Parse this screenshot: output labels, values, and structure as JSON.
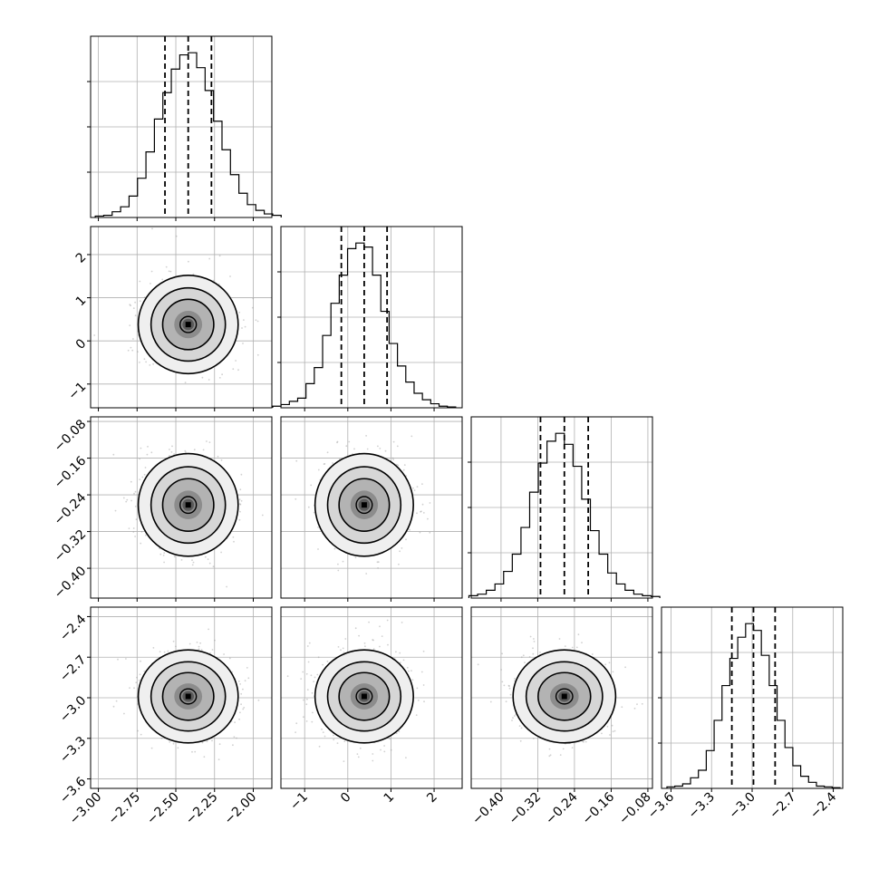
{
  "chart_data": {
    "type": "corner",
    "grid": true,
    "colors": {
      "line": "#000000",
      "grid": "#b0b0b0",
      "points": "#999999"
    },
    "parameters": [
      {
        "range": [
          -3.05,
          -1.88
        ],
        "ticks": [
          "-3.00",
          "-2.75",
          "-2.50",
          "-2.25",
          "-2.00"
        ],
        "tick_values": [
          -3.0,
          -2.75,
          -2.5,
          -2.25,
          -2.0
        ],
        "mean": -2.42,
        "sd": 0.15,
        "quantiles": [
          -2.57,
          -2.42,
          -2.27
        ]
      },
      {
        "range": [
          -1.55,
          2.65
        ],
        "ticks": [
          "-1",
          "0",
          "1",
          "2"
        ],
        "tick_values": [
          -1,
          0,
          1,
          2
        ],
        "mean": 0.38,
        "sd": 0.53,
        "quantiles": [
          -0.15,
          0.38,
          0.91
        ]
      },
      {
        "range": [
          -0.465,
          -0.07
        ],
        "ticks": [
          "-0.40",
          "-0.32",
          "-0.24",
          "-0.16",
          "-0.08"
        ],
        "tick_values": [
          -0.4,
          -0.32,
          -0.24,
          -0.16,
          -0.08
        ],
        "mean": -0.262,
        "sd": 0.052,
        "quantiles": [
          -0.314,
          -0.262,
          -0.21
        ]
      },
      {
        "range": [
          -3.67,
          -2.33
        ],
        "ticks": [
          "-3.6",
          "-3.3",
          "-3.0",
          "-2.7",
          "-2.4"
        ],
        "tick_values": [
          -3.6,
          -3.3,
          -3.0,
          -2.7,
          -2.4
        ],
        "mean": -2.99,
        "sd": 0.16,
        "quantiles": [
          -3.15,
          -2.99,
          -2.83
        ]
      }
    ],
    "histograms": [
      [
        2,
        3,
        8,
        15,
        30,
        55,
        92,
        138,
        175,
        208,
        228,
        231,
        210,
        178,
        135,
        95,
        60,
        34,
        18,
        10,
        5,
        3
      ],
      [
        2,
        4,
        8,
        12,
        30,
        50,
        90,
        130,
        165,
        198,
        205,
        200,
        165,
        120,
        80,
        52,
        32,
        18,
        10,
        5,
        2,
        1
      ],
      [
        3,
        5,
        10,
        18,
        34,
        56,
        90,
        135,
        172,
        200,
        210,
        196,
        168,
        126,
        86,
        56,
        32,
        18,
        10,
        5,
        3,
        2
      ],
      [
        2,
        3,
        6,
        14,
        24,
        50,
        90,
        136,
        172,
        200,
        218,
        209,
        176,
        136,
        90,
        54,
        30,
        16,
        8,
        3,
        2,
        1
      ]
    ]
  }
}
